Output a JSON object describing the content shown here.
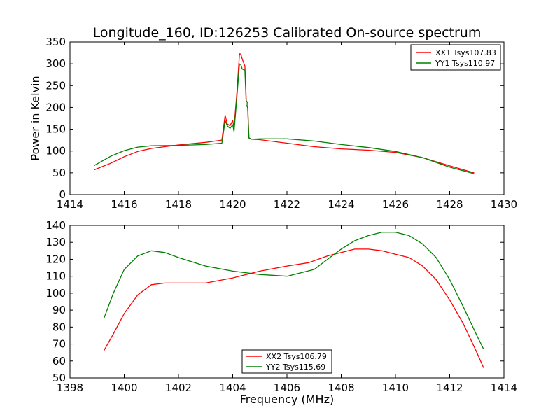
{
  "colors": {
    "red": "#ff0000",
    "green": "#008000",
    "axis": "#000000",
    "background": "#ffffff"
  },
  "chart_data": [
    {
      "type": "line",
      "title": "Longitude_160, ID:126253 Calibrated On-source spectrum",
      "xlabel": "",
      "ylabel": "Power in Kelvin",
      "xlim": [
        1414,
        1430
      ],
      "ylim": [
        0,
        350
      ],
      "xticks": [
        1414,
        1416,
        1418,
        1420,
        1422,
        1424,
        1426,
        1428,
        1430
      ],
      "yticks": [
        0,
        50,
        100,
        150,
        200,
        250,
        300,
        350
      ],
      "grid": false,
      "legend_position": "top-right",
      "series": [
        {
          "name": "XX1 Tsys107.83",
          "color": "#ff0000",
          "x": [
            1414.9,
            1415.5,
            1416.0,
            1416.5,
            1417.0,
            1418.0,
            1419.0,
            1419.6,
            1419.72,
            1419.8,
            1419.9,
            1420.0,
            1420.05,
            1420.15,
            1420.25,
            1420.3,
            1420.35,
            1420.45,
            1420.5,
            1420.55,
            1420.6,
            1420.7,
            1421.0,
            1422.0,
            1423.0,
            1424.0,
            1425.0,
            1426.0,
            1427.0,
            1428.0,
            1428.9
          ],
          "y": [
            57,
            72,
            87,
            99,
            106,
            114,
            120,
            125,
            182,
            162,
            158,
            170,
            155,
            230,
            323,
            322,
            311,
            295,
            215,
            212,
            130,
            127,
            126,
            118,
            110,
            105,
            102,
            97,
            85,
            66,
            50
          ]
        },
        {
          "name": "YY1 Tsys110.97",
          "color": "#008000",
          "x": [
            1414.9,
            1415.5,
            1416.0,
            1416.5,
            1417.0,
            1418.0,
            1419.0,
            1419.6,
            1419.72,
            1419.8,
            1419.9,
            1420.0,
            1420.05,
            1420.15,
            1420.25,
            1420.3,
            1420.35,
            1420.45,
            1420.5,
            1420.55,
            1420.6,
            1420.7,
            1421.0,
            1422.0,
            1423.0,
            1424.0,
            1425.0,
            1426.0,
            1427.0,
            1428.0,
            1428.9
          ],
          "y": [
            67,
            88,
            101,
            109,
            112,
            113,
            115,
            118,
            170,
            158,
            152,
            160,
            145,
            220,
            300,
            298,
            288,
            285,
            205,
            200,
            130,
            127,
            128,
            128,
            123,
            115,
            108,
            99,
            85,
            63,
            48
          ]
        }
      ]
    },
    {
      "type": "line",
      "title": "",
      "xlabel": "Frequency (MHz)",
      "ylabel": "",
      "xlim": [
        1398,
        1414
      ],
      "ylim": [
        50,
        140
      ],
      "xticks": [
        1398,
        1400,
        1402,
        1404,
        1406,
        1408,
        1410,
        1412,
        1414
      ],
      "yticks": [
        50,
        60,
        70,
        80,
        90,
        100,
        110,
        120,
        130,
        140
      ],
      "grid": false,
      "legend_position": "bottom-center",
      "series": [
        {
          "name": "XX2 Tsys106.79",
          "color": "#ff0000",
          "x": [
            1399.25,
            1399.6,
            1400.0,
            1400.5,
            1401.0,
            1401.5,
            1402.0,
            1403.0,
            1404.0,
            1405.0,
            1406.0,
            1406.8,
            1407.5,
            1408.0,
            1408.5,
            1409.0,
            1409.5,
            1410.0,
            1410.5,
            1411.0,
            1411.5,
            1412.0,
            1412.5,
            1413.0,
            1413.25
          ],
          "y": [
            66,
            76,
            88,
            99,
            105,
            106,
            106,
            106,
            109,
            113,
            116,
            118,
            122,
            124,
            126,
            126,
            125,
            123,
            121,
            116,
            108,
            96,
            82,
            65,
            56
          ]
        },
        {
          "name": "YY2 Tsys115.69",
          "color": "#008000",
          "x": [
            1399.25,
            1399.6,
            1400.0,
            1400.5,
            1401.0,
            1401.5,
            1402.0,
            1403.0,
            1404.0,
            1405.0,
            1406.0,
            1407.0,
            1407.5,
            1408.0,
            1408.5,
            1409.0,
            1409.5,
            1410.0,
            1410.5,
            1411.0,
            1411.5,
            1412.0,
            1412.5,
            1413.0,
            1413.25
          ],
          "y": [
            85,
            100,
            114,
            122,
            125,
            124,
            121,
            116,
            113,
            111,
            110,
            114,
            120,
            126,
            131,
            134,
            136,
            136,
            134,
            129,
            121,
            108,
            92,
            75,
            67
          ]
        }
      ]
    }
  ]
}
